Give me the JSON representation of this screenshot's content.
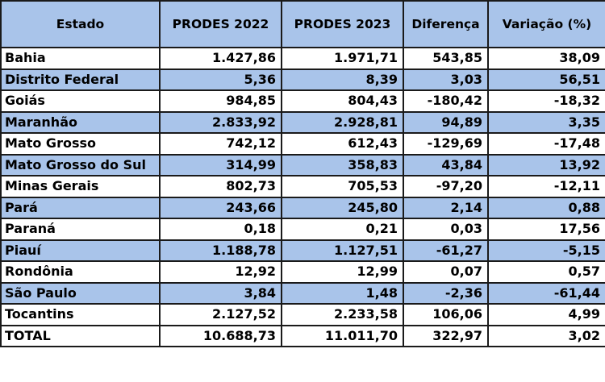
{
  "table": {
    "headers": [
      "Estado",
      "PRODES 2022",
      "PRODES 2023",
      "Diferença",
      "Variação (%)"
    ],
    "rows": [
      [
        "Bahia",
        "1.427,86",
        "1.971,71",
        "543,85",
        "38,09"
      ],
      [
        "Distrito Federal",
        "5,36",
        "8,39",
        "3,03",
        "56,51"
      ],
      [
        "Goiás",
        "984,85",
        "804,43",
        "-180,42",
        "-18,32"
      ],
      [
        "Maranhão",
        "2.833,92",
        "2.928,81",
        "94,89",
        "3,35"
      ],
      [
        "Mato Grosso",
        "742,12",
        "612,43",
        "-129,69",
        "-17,48"
      ],
      [
        "Mato Grosso do Sul",
        "314,99",
        "358,83",
        "43,84",
        "13,92"
      ],
      [
        "Minas Gerais",
        "802,73",
        "705,53",
        "-97,20",
        "-12,11"
      ],
      [
        "Pará",
        "243,66",
        "245,80",
        "2,14",
        "0,88"
      ],
      [
        "Paraná",
        "0,18",
        "0,21",
        "0,03",
        "17,56"
      ],
      [
        "Piauí",
        "1.188,78",
        "1.127,51",
        "-61,27",
        "-5,15"
      ],
      [
        "Rondônia",
        "12,92",
        "12,99",
        "0,07",
        "0,57"
      ],
      [
        "São Paulo",
        "3,84",
        "1,48",
        "-2,36",
        "-61,44"
      ],
      [
        "Tocantins",
        "2.127,52",
        "2.233,58",
        "106,06",
        "4,99"
      ]
    ],
    "total": [
      "TOTAL",
      "10.688,73",
      "11.011,70",
      "322,97",
      "3,02"
    ]
  },
  "colors": {
    "header_bg": "#a9c4ea",
    "stripe_bg": "#a9c4ea",
    "plain_bg": "#ffffff",
    "border": "#1a1a1a"
  }
}
